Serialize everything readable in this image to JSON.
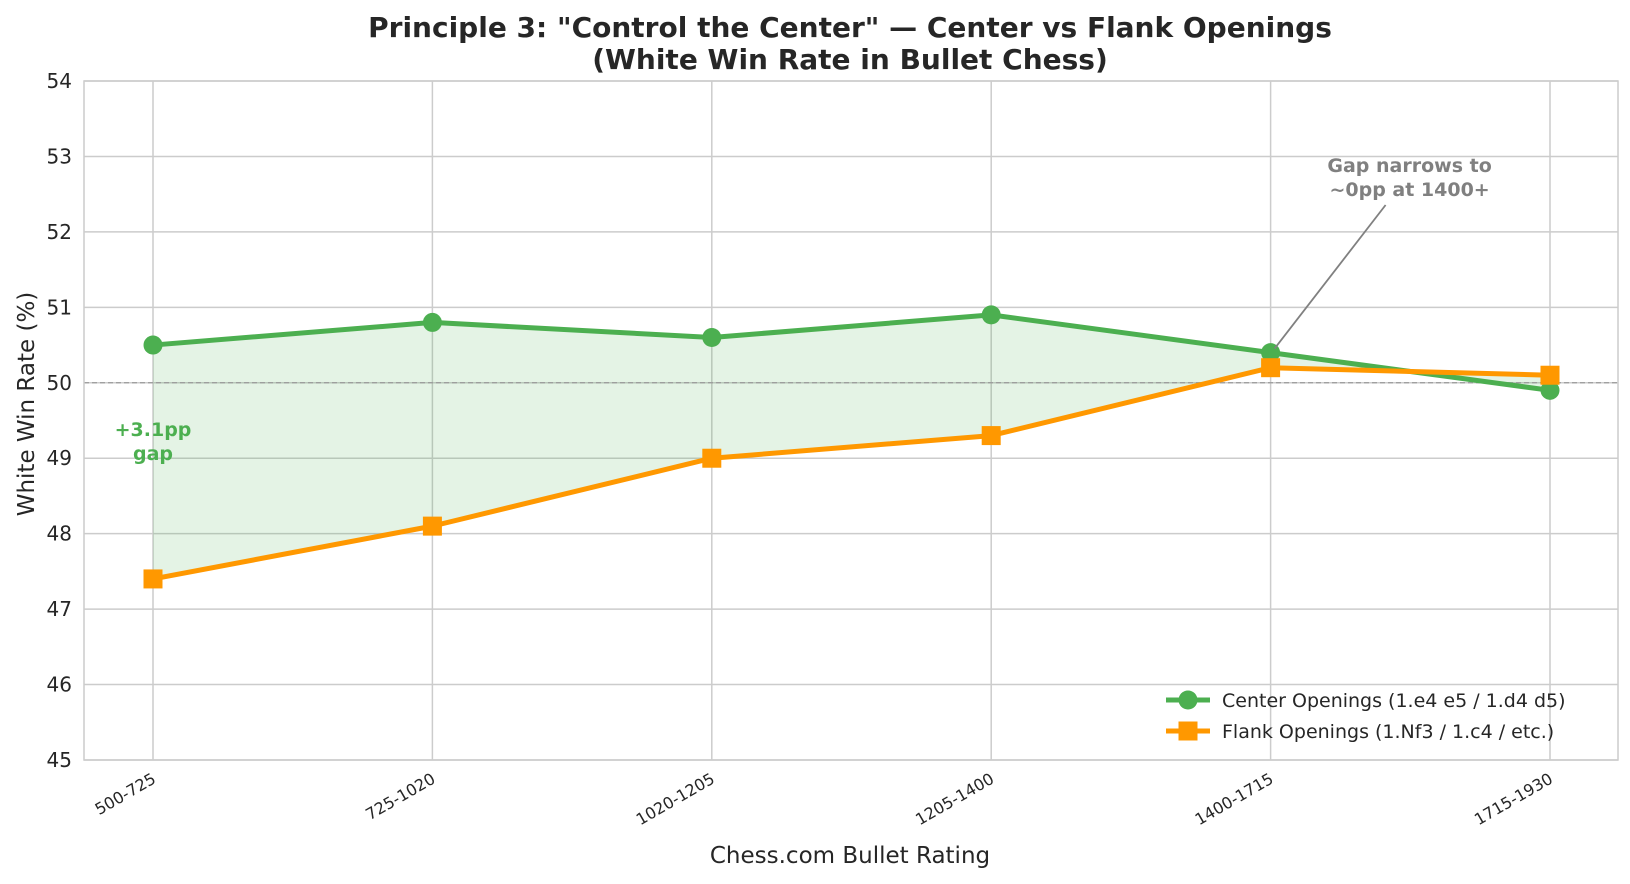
{
  "chart_data": {
    "type": "line",
    "title": "Principle 3: \"Control the Center\" — Center vs Flank Openings",
    "subtitle": "(White Win Rate in Bullet Chess)",
    "xlabel": "Chess.com Bullet Rating",
    "ylabel": "White Win Rate (%)",
    "categories": [
      "500-725",
      "725-1020",
      "1020-1205",
      "1205-1400",
      "1400-1715",
      "1715-1930"
    ],
    "ylim": [
      45,
      54
    ],
    "yticks": [
      "45",
      "46",
      "47",
      "48",
      "49",
      "50",
      "51",
      "52",
      "53",
      "54"
    ],
    "grid": true,
    "legend_position": "bottom-right",
    "reference_line": 50,
    "series": [
      {
        "name": "Center Openings (1.e4 e5 / 1.d4 d5)",
        "values": [
          50.5,
          50.8,
          50.6,
          50.9,
          50.4,
          49.9
        ],
        "color": "#4caf50",
        "marker": "circle"
      },
      {
        "name": "Flank Openings (1.Nf3 / 1.c4 / etc.)",
        "values": [
          47.4,
          48.1,
          49.0,
          49.3,
          50.2,
          50.1
        ],
        "color": "#ff9800",
        "marker": "square"
      }
    ],
    "fill_between_color": "#4caf50",
    "annotations": [
      {
        "lines": [
          "+3.1pp",
          "gap"
        ],
        "color": "#4caf50"
      },
      {
        "lines": [
          "Gap narrows to",
          "~0pp at 1400+"
        ],
        "color": "#808080",
        "arrow_target": {
          "category": "1400-1715",
          "value": 50.4
        }
      }
    ]
  }
}
